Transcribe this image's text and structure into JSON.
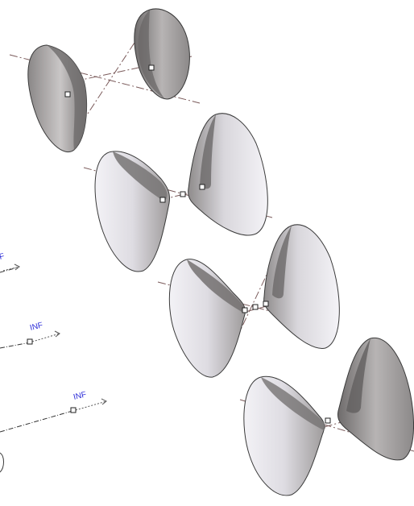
{
  "labels": {
    "inf_1": "F",
    "inf_2": "INF",
    "inf_3": "INF"
  },
  "colors": {
    "label": "#2c2cd8",
    "center_line": "#7a5a5a",
    "marker_stroke": "#222222",
    "shade_dark": "#6f6c6c",
    "shade_mid": "#a9a6a6",
    "shade_light": "#ebe9ee",
    "outline": "#3a3a3a"
  },
  "icons": {
    "point_marker": "square-point-marker-icon",
    "direction_arrow": "arrow-right-icon"
  }
}
